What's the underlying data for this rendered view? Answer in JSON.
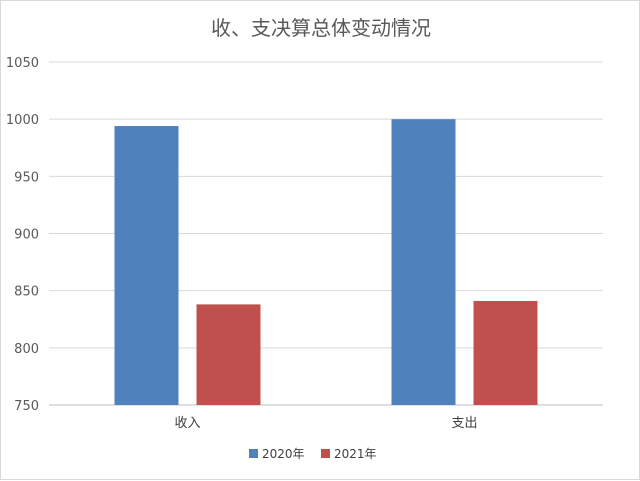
{
  "chart_data": {
    "type": "bar",
    "title": "收、支决算总体变动情况",
    "categories": [
      "收入",
      "支出"
    ],
    "series": [
      {
        "name": "2020年",
        "color": "#4F81BD",
        "values": [
          994,
          1000
        ]
      },
      {
        "name": "2021年",
        "color": "#C0504D",
        "values": [
          838,
          841
        ]
      }
    ],
    "ylim": [
      750,
      1050
    ],
    "yticks": [
      750,
      800,
      850,
      900,
      950,
      1000,
      1050
    ],
    "grid": true,
    "legend_position": "bottom",
    "xlabel": "",
    "ylabel": ""
  }
}
